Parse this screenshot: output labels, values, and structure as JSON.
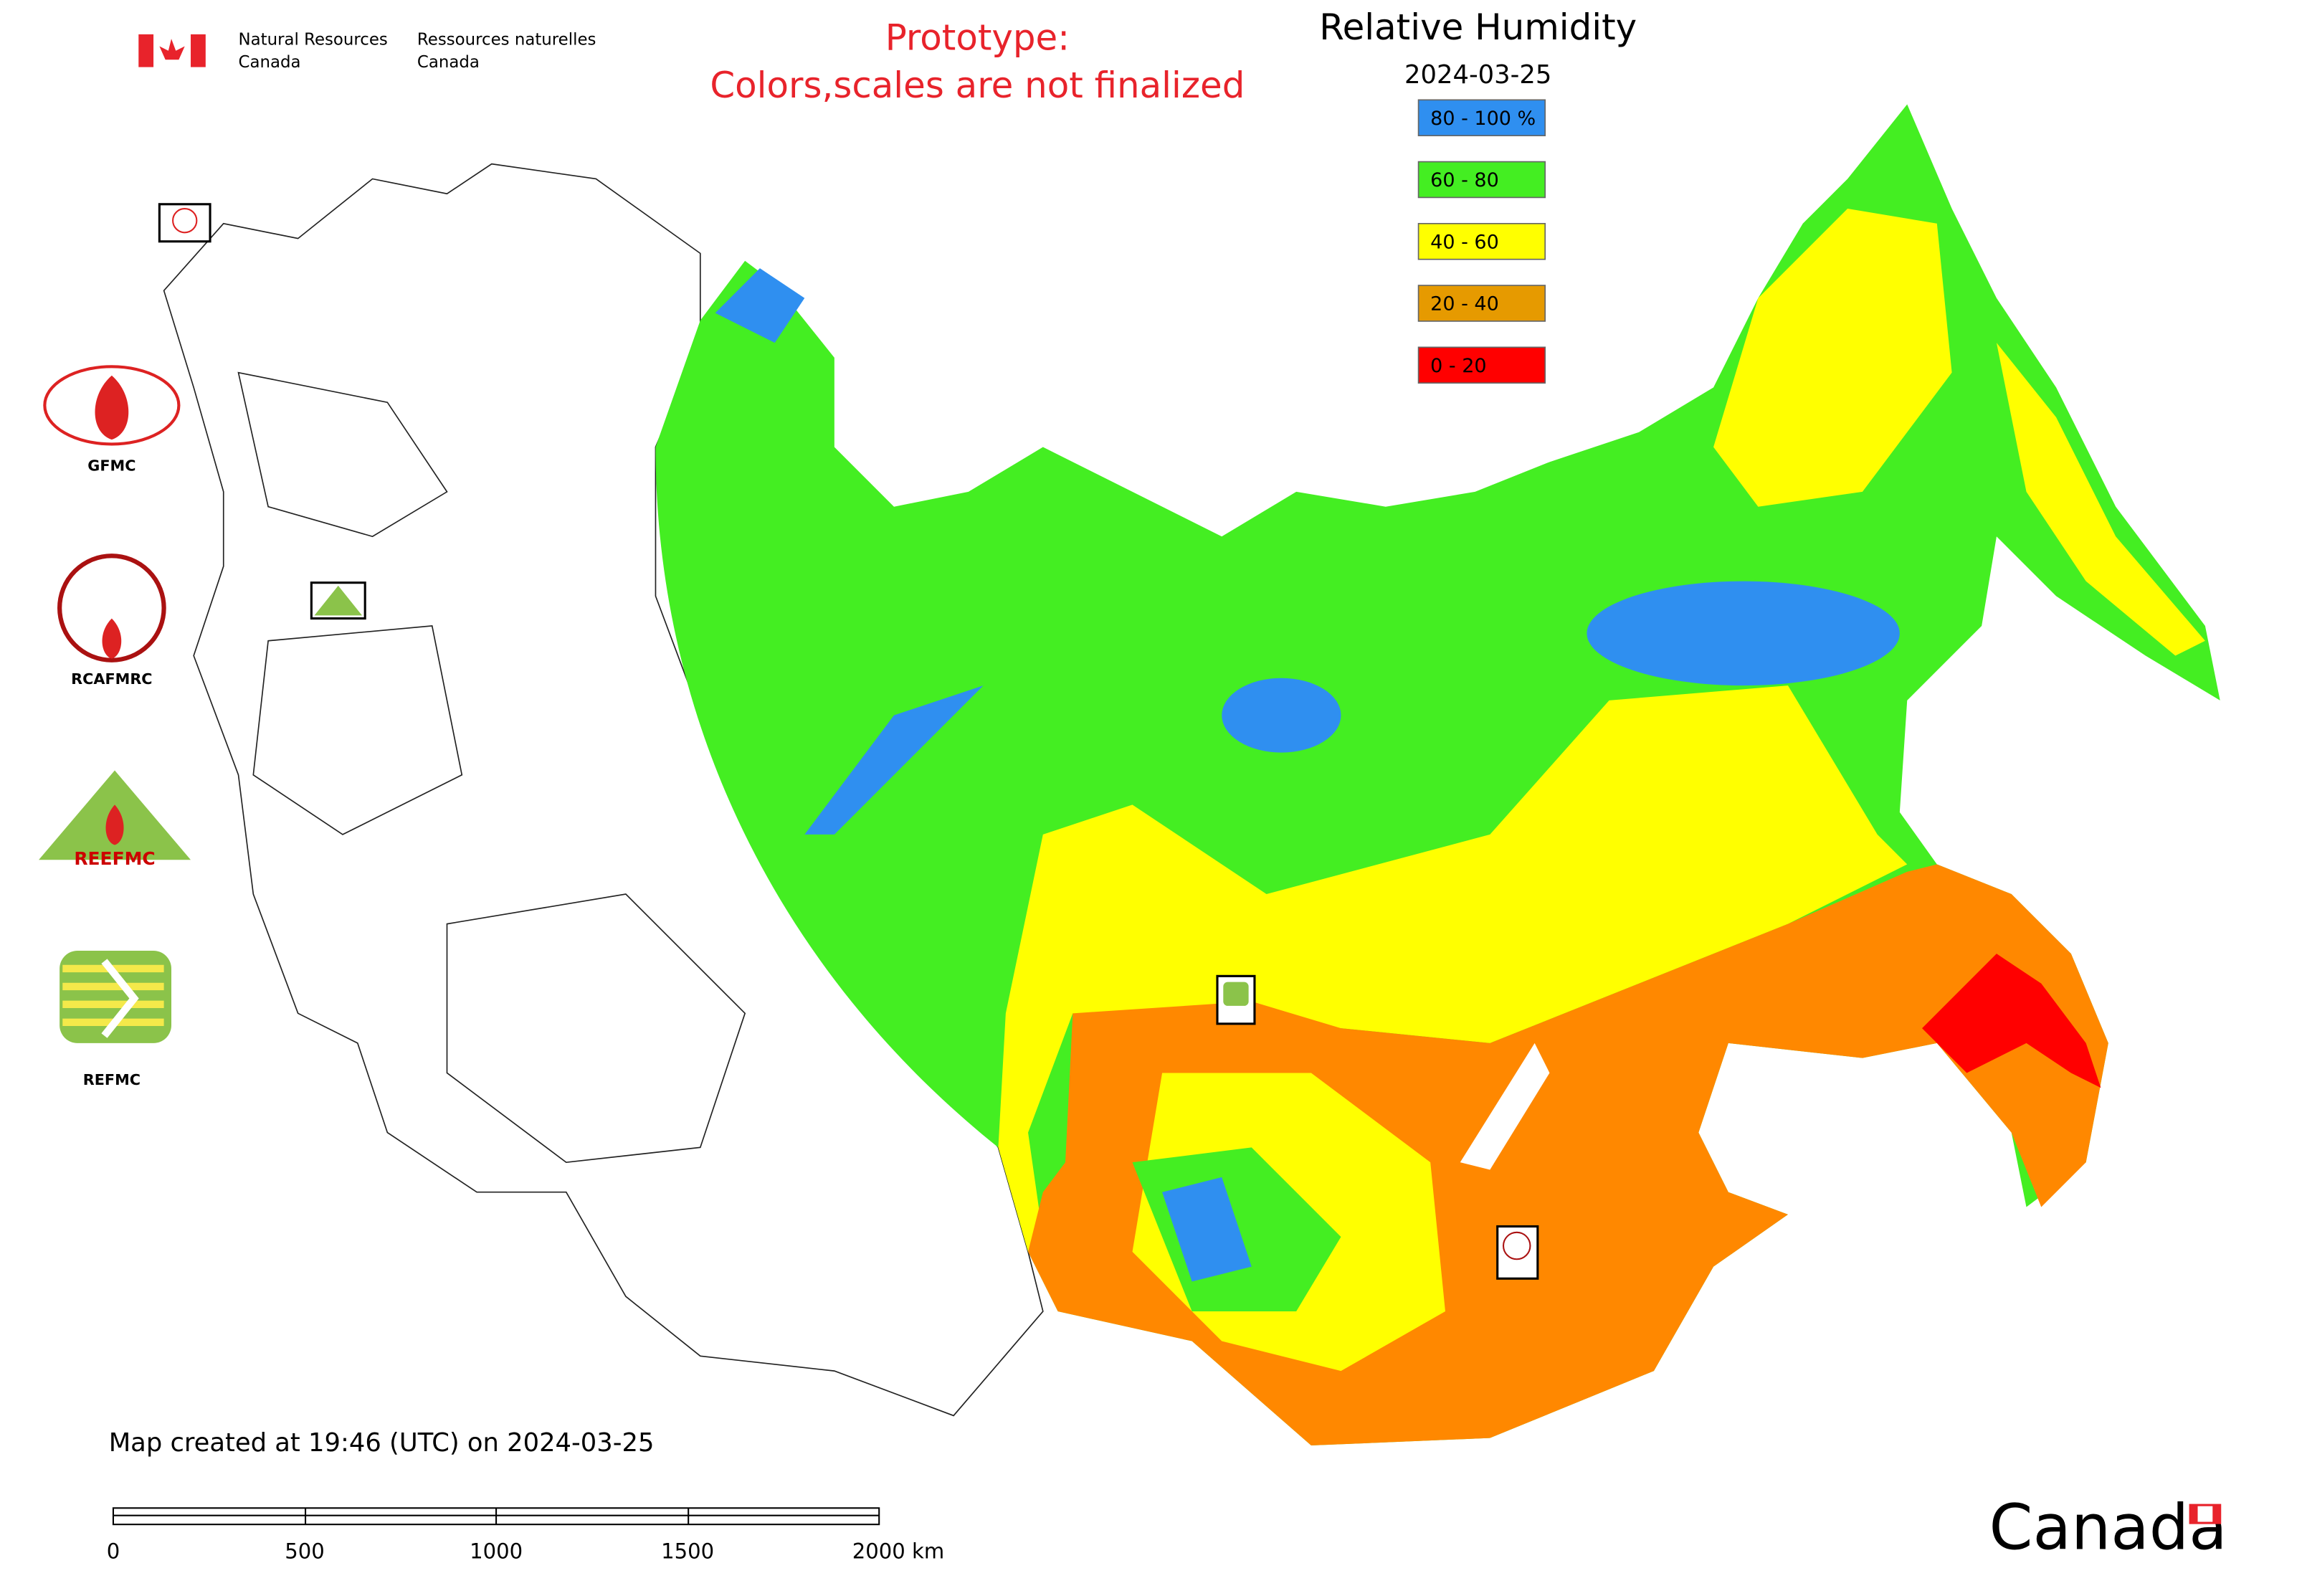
{
  "header": {
    "org_en": [
      "Natural Resources",
      "Canada"
    ],
    "org_fr": [
      "Ressources naturelles",
      "Canada"
    ],
    "notice": [
      "Prototype:",
      "Colors,scales are not finalized"
    ],
    "title": "Relative Humidity",
    "date": "2024-03-25"
  },
  "legend": [
    {
      "label": "80 - 100 %",
      "color": "#2f8ff0"
    },
    {
      "label": "60 - 80",
      "color": "#44ee22"
    },
    {
      "label": "40 - 60",
      "color": "#ffff00"
    },
    {
      "label": "20 - 40",
      "color": "#e69a00"
    },
    {
      "label": "0 - 20",
      "color": "#ff0000"
    }
  ],
  "logos": {
    "gfmc": "GFMC",
    "rcafmrc": "RCAFMRC",
    "reefmc": "REEFMC",
    "refmc": "REFMC"
  },
  "footer": {
    "created": "Map created at 19:46 (UTC) on 2024-03-25",
    "scale_labels": [
      "0",
      "500",
      "1000",
      "1500",
      "2000 km"
    ],
    "wordmark": "Canada"
  }
}
